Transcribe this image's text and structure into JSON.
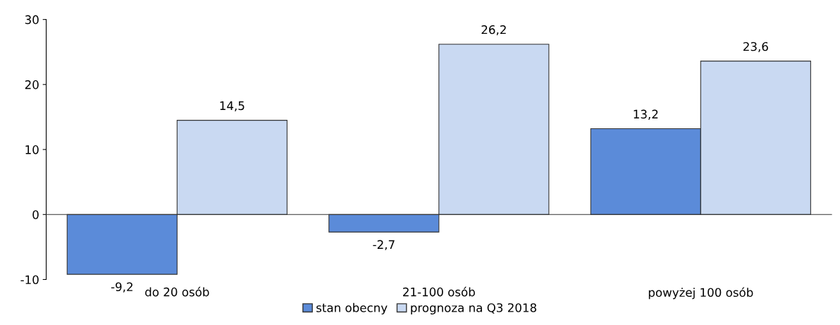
{
  "chart_data": {
    "type": "bar",
    "categories": [
      "do 20 osób",
      "21-100 osób",
      "powyżej 100 osób"
    ],
    "series": [
      {
        "name": "stan obecny",
        "color": "#5b8bd9",
        "values": [
          -9.2,
          -2.7,
          13.2
        ],
        "value_labels": [
          "-9,2",
          "-2,7",
          "13,2"
        ]
      },
      {
        "name": "prognoza na Q3 2018",
        "color": "#c9d9f2",
        "values": [
          14.5,
          26.2,
          23.6
        ],
        "value_labels": [
          "14,5",
          "26,2",
          "23,6"
        ]
      }
    ],
    "ylim": [
      -10,
      30
    ],
    "yticks": [
      -10,
      0,
      10,
      20,
      30
    ],
    "legend": "bottom"
  }
}
